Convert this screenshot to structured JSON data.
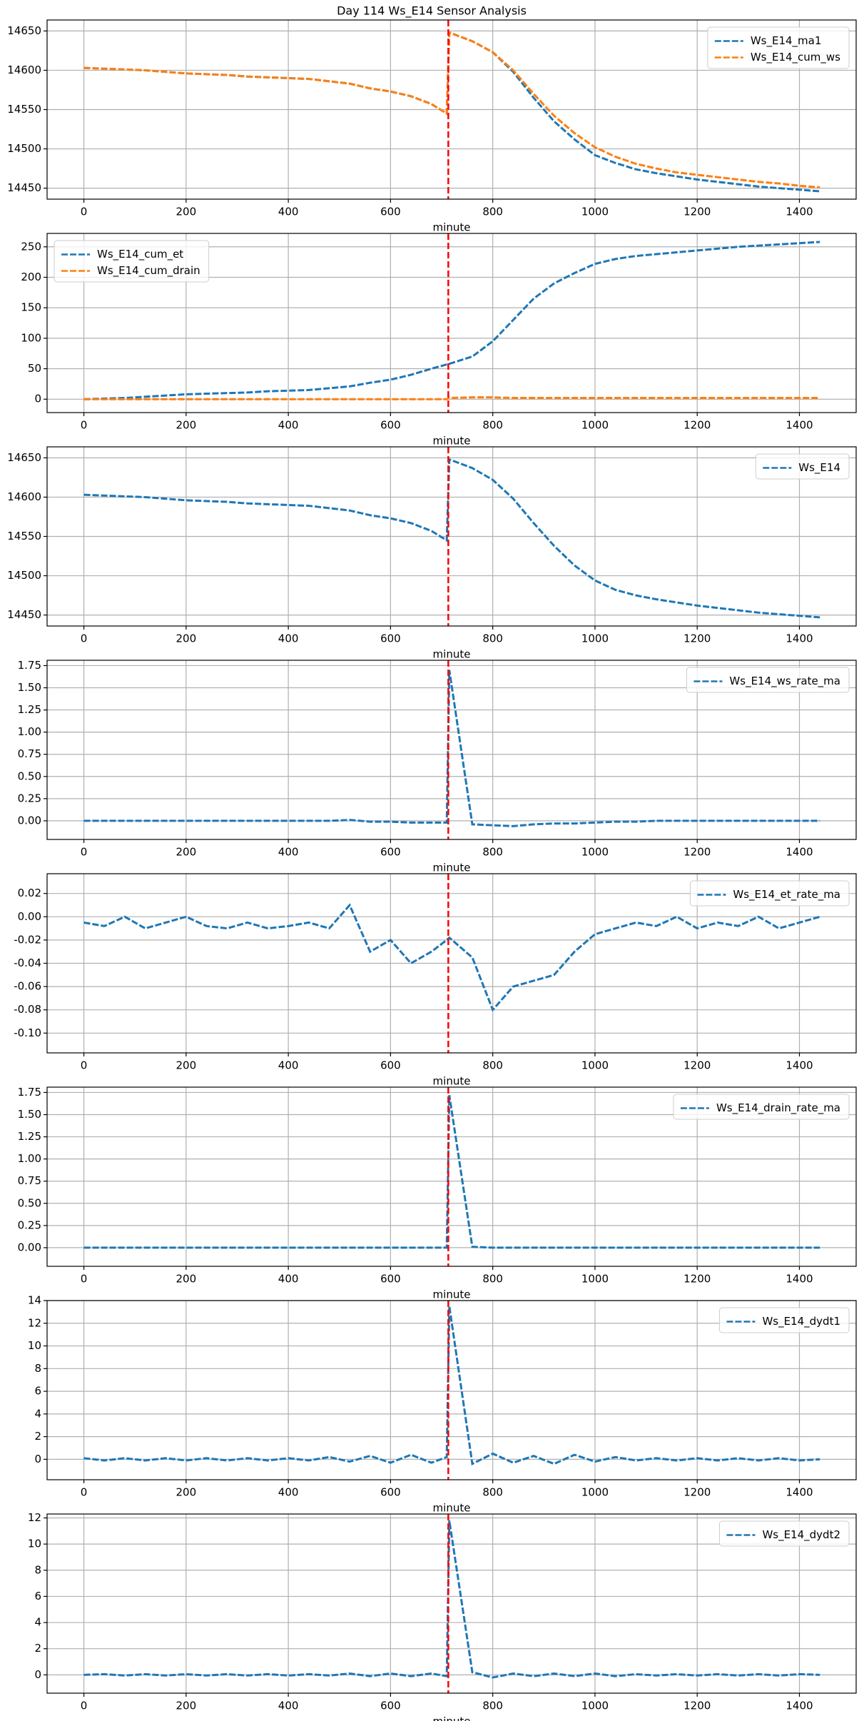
{
  "title": "Day 114 Ws_E14 Sensor Analysis",
  "chart_data": [
    {
      "type": "line",
      "xlabel": "minute",
      "legend": "upper right",
      "grid": true,
      "vline": 713,
      "vline_color": "#ff0000",
      "xlim": [
        -72,
        1511
      ],
      "xticks": [
        0,
        200,
        400,
        600,
        800,
        1000,
        1200,
        1400
      ],
      "ylim": [
        14436,
        14664
      ],
      "yticks": [
        14450,
        14500,
        14550,
        14600,
        14650
      ],
      "x": [
        0,
        40,
        80,
        120,
        160,
        200,
        240,
        280,
        320,
        360,
        400,
        440,
        480,
        520,
        560,
        600,
        640,
        680,
        710,
        715,
        760,
        800,
        840,
        880,
        920,
        960,
        1000,
        1040,
        1080,
        1120,
        1160,
        1200,
        1240,
        1280,
        1320,
        1360,
        1400,
        1440
      ],
      "series": [
        {
          "name": "Ws_E14_ma1",
          "color": "#1f77b4",
          "values": [
            14603,
            14602,
            14601,
            14600,
            14598,
            14596,
            14595,
            14594,
            14592,
            14591,
            14590,
            14589,
            14586,
            14583,
            14577,
            14573,
            14567,
            14557,
            14545,
            14648,
            14637,
            14623,
            14598,
            14565,
            14535,
            14512,
            14492,
            14482,
            14474,
            14469,
            14465,
            14461,
            14458,
            14455,
            14452,
            14450,
            14448,
            14446
          ]
        },
        {
          "name": "Ws_E14_cum_ws",
          "color": "#ff7f0e",
          "values": [
            14603,
            14602,
            14601,
            14600,
            14598,
            14596,
            14595,
            14594,
            14592,
            14591,
            14590,
            14589,
            14586,
            14583,
            14577,
            14573,
            14567,
            14557,
            14545,
            14648,
            14637,
            14623,
            14600,
            14570,
            14542,
            14520,
            14502,
            14490,
            14481,
            14475,
            14470,
            14467,
            14464,
            14461,
            14458,
            14456,
            14453,
            14451
          ]
        }
      ]
    },
    {
      "type": "line",
      "xlabel": "minute",
      "legend": "upper left",
      "grid": true,
      "vline": 713,
      "vline_color": "#ff0000",
      "xlim": [
        -72,
        1511
      ],
      "xticks": [
        0,
        200,
        400,
        600,
        800,
        1000,
        1200,
        1400
      ],
      "ylim": [
        -22,
        272
      ],
      "yticks": [
        0,
        50,
        100,
        150,
        200,
        250
      ],
      "x": [
        0,
        40,
        80,
        120,
        160,
        200,
        240,
        280,
        320,
        360,
        400,
        440,
        480,
        520,
        560,
        600,
        640,
        680,
        710,
        715,
        760,
        800,
        840,
        880,
        920,
        960,
        1000,
        1040,
        1080,
        1120,
        1160,
        1200,
        1240,
        1280,
        1320,
        1360,
        1400,
        1440
      ],
      "series": [
        {
          "name": "Ws_E14_cum_et",
          "color": "#1f77b4",
          "values": [
            0,
            1,
            2,
            4,
            6,
            8,
            9,
            10,
            11,
            13,
            14,
            15,
            18,
            21,
            27,
            32,
            40,
            50,
            57,
            58,
            70,
            95,
            130,
            165,
            190,
            207,
            222,
            230,
            235,
            238,
            241,
            244,
            247,
            250,
            252,
            254,
            256,
            258
          ]
        },
        {
          "name": "Ws_E14_cum_drain",
          "color": "#ff7f0e",
          "values": [
            0,
            0,
            0,
            0,
            0,
            0,
            0,
            0,
            0,
            0,
            0,
            0,
            0,
            0,
            0,
            0,
            0,
            0,
            0,
            2,
            3,
            3,
            2,
            2,
            2,
            2,
            2,
            2,
            2,
            2,
            2,
            2,
            2,
            2,
            2,
            2,
            2,
            2
          ]
        }
      ]
    },
    {
      "type": "line",
      "xlabel": "minute",
      "legend": "upper right",
      "grid": true,
      "vline": 713,
      "vline_color": "#ff0000",
      "xlim": [
        -72,
        1511
      ],
      "xticks": [
        0,
        200,
        400,
        600,
        800,
        1000,
        1200,
        1400
      ],
      "ylim": [
        14436,
        14664
      ],
      "yticks": [
        14450,
        14500,
        14550,
        14600,
        14650
      ],
      "x": [
        0,
        40,
        80,
        120,
        160,
        200,
        240,
        280,
        320,
        360,
        400,
        440,
        480,
        520,
        560,
        600,
        640,
        680,
        710,
        715,
        760,
        800,
        840,
        880,
        920,
        960,
        1000,
        1040,
        1080,
        1120,
        1160,
        1200,
        1240,
        1280,
        1320,
        1360,
        1400,
        1440
      ],
      "series": [
        {
          "name": "Ws_E14",
          "color": "#1f77b4",
          "values": [
            14603,
            14602,
            14601,
            14600,
            14598,
            14596,
            14595,
            14594,
            14592,
            14591,
            14590,
            14589,
            14586,
            14583,
            14577,
            14573,
            14567,
            14557,
            14545,
            14648,
            14637,
            14622,
            14598,
            14567,
            14538,
            14513,
            14494,
            14482,
            14475,
            14470,
            14466,
            14462,
            14459,
            14456,
            14453,
            14451,
            14449,
            14447
          ]
        }
      ]
    },
    {
      "type": "line",
      "xlabel": "minute",
      "legend": "upper right",
      "grid": true,
      "vline": 713,
      "vline_color": "#ff0000",
      "xlim": [
        -72,
        1511
      ],
      "xticks": [
        0,
        200,
        400,
        600,
        800,
        1000,
        1200,
        1400
      ],
      "ylim": [
        -0.21,
        1.81
      ],
      "yticks": [
        {
          "value": 0,
          "label": "0.00"
        },
        {
          "value": 0.25,
          "label": "0.25"
        },
        {
          "value": 0.5,
          "label": "0.50"
        },
        {
          "value": 0.75,
          "label": "0.75"
        },
        {
          "value": 1,
          "label": "1.00"
        },
        {
          "value": 1.25,
          "label": "1.25"
        },
        {
          "value": 1.5,
          "label": "1.50"
        },
        {
          "value": 1.75,
          "label": "1.75"
        }
      ],
      "x": [
        0,
        40,
        80,
        120,
        160,
        200,
        240,
        280,
        320,
        360,
        400,
        440,
        480,
        520,
        560,
        600,
        640,
        680,
        710,
        715,
        760,
        800,
        840,
        880,
        920,
        960,
        1000,
        1040,
        1080,
        1120,
        1160,
        1200,
        1240,
        1280,
        1320,
        1360,
        1400,
        1440
      ],
      "series": [
        {
          "name": "Ws_E14_ws_rate_ma",
          "color": "#1f77b4",
          "values": [
            0,
            0,
            0,
            0,
            0,
            0,
            0,
            0,
            0,
            0,
            0,
            0,
            0,
            0.01,
            -0.01,
            -0.01,
            -0.02,
            -0.02,
            -0.02,
            1.7,
            -0.04,
            -0.05,
            -0.06,
            -0.04,
            -0.03,
            -0.03,
            -0.02,
            -0.01,
            -0.01,
            0,
            0,
            0,
            0,
            0,
            0,
            0,
            0,
            0
          ]
        }
      ]
    },
    {
      "type": "line",
      "xlabel": "minute",
      "legend": "upper right",
      "grid": true,
      "vline": 713,
      "vline_color": "#ff0000",
      "xlim": [
        -72,
        1511
      ],
      "xticks": [
        0,
        200,
        400,
        600,
        800,
        1000,
        1200,
        1400
      ],
      "ylim": [
        -0.117,
        0.037
      ],
      "yticks": [
        {
          "value": -0.1,
          "label": "-0.10"
        },
        {
          "value": -0.08,
          "label": "-0.08"
        },
        {
          "value": -0.06,
          "label": "-0.06"
        },
        {
          "value": -0.04,
          "label": "-0.04"
        },
        {
          "value": -0.02,
          "label": "-0.02"
        },
        {
          "value": 0,
          "label": "0.00"
        },
        0.02
      ],
      "x": [
        0,
        40,
        80,
        120,
        160,
        200,
        240,
        280,
        320,
        360,
        400,
        440,
        480,
        520,
        560,
        600,
        640,
        680,
        710,
        715,
        760,
        800,
        840,
        880,
        920,
        960,
        1000,
        1040,
        1080,
        1120,
        1160,
        1200,
        1240,
        1280,
        1320,
        1360,
        1400,
        1440
      ],
      "series": [
        {
          "name": "Ws_E14_et_rate_ma",
          "color": "#1f77b4",
          "values": [
            -0.005,
            -0.008,
            0,
            -0.01,
            -0.005,
            0,
            -0.008,
            -0.01,
            -0.005,
            -0.01,
            -0.008,
            -0.005,
            -0.01,
            0.01,
            -0.03,
            -0.02,
            -0.04,
            -0.03,
            -0.02,
            -0.018,
            -0.035,
            -0.08,
            -0.06,
            -0.055,
            -0.05,
            -0.03,
            -0.015,
            -0.01,
            -0.005,
            -0.008,
            0,
            -0.01,
            -0.005,
            -0.008,
            0,
            -0.01,
            -0.005,
            0
          ]
        }
      ]
    },
    {
      "type": "line",
      "xlabel": "minute",
      "legend": "upper right",
      "grid": true,
      "vline": 713,
      "vline_color": "#ff0000",
      "xlim": [
        -72,
        1511
      ],
      "xticks": [
        0,
        200,
        400,
        600,
        800,
        1000,
        1200,
        1400
      ],
      "ylim": [
        -0.21,
        1.81
      ],
      "yticks": [
        {
          "value": 0,
          "label": "0.00"
        },
        {
          "value": 0.25,
          "label": "0.25"
        },
        {
          "value": 0.5,
          "label": "0.50"
        },
        {
          "value": 0.75,
          "label": "0.75"
        },
        {
          "value": 1,
          "label": "1.00"
        },
        {
          "value": 1.25,
          "label": "1.25"
        },
        {
          "value": 1.5,
          "label": "1.50"
        },
        {
          "value": 1.75,
          "label": "1.75"
        }
      ],
      "x": [
        0,
        40,
        80,
        120,
        160,
        200,
        240,
        280,
        320,
        360,
        400,
        440,
        480,
        520,
        560,
        600,
        640,
        680,
        710,
        715,
        760,
        800,
        840,
        880,
        920,
        960,
        1000,
        1040,
        1080,
        1120,
        1160,
        1200,
        1240,
        1280,
        1320,
        1360,
        1400,
        1440
      ],
      "series": [
        {
          "name": "Ws_E14_drain_rate_ma",
          "color": "#1f77b4",
          "values": [
            0,
            0,
            0,
            0,
            0,
            0,
            0,
            0,
            0,
            0,
            0,
            0,
            0,
            0,
            0,
            0,
            0,
            0,
            0,
            1.72,
            0.01,
            0,
            0,
            0,
            0,
            0,
            0,
            0,
            0,
            0,
            0,
            0,
            0,
            0,
            0,
            0,
            0,
            0
          ]
        }
      ]
    },
    {
      "type": "line",
      "xlabel": "minute",
      "legend": "upper right",
      "grid": true,
      "vline": 713,
      "vline_color": "#ff0000",
      "xlim": [
        -72,
        1511
      ],
      "xticks": [
        0,
        200,
        400,
        600,
        800,
        1000,
        1200,
        1400
      ],
      "ylim": [
        -1.8,
        14
      ],
      "yticks": [
        0,
        2,
        4,
        6,
        8,
        10,
        12,
        14
      ],
      "x": [
        0,
        40,
        80,
        120,
        160,
        200,
        240,
        280,
        320,
        360,
        400,
        440,
        480,
        520,
        560,
        600,
        640,
        680,
        710,
        715,
        760,
        800,
        840,
        880,
        920,
        960,
        1000,
        1040,
        1080,
        1120,
        1160,
        1200,
        1240,
        1280,
        1320,
        1360,
        1400,
        1440
      ],
      "series": [
        {
          "name": "Ws_E14_dydt1",
          "color": "#1f77b4",
          "values": [
            0.1,
            -0.1,
            0.1,
            -0.1,
            0.1,
            -0.1,
            0.1,
            -0.1,
            0.1,
            -0.1,
            0.1,
            -0.1,
            0.2,
            -0.2,
            0.3,
            -0.3,
            0.4,
            -0.3,
            0.2,
            13.5,
            -0.4,
            0.5,
            -0.3,
            0.3,
            -0.4,
            0.4,
            -0.2,
            0.2,
            -0.1,
            0.1,
            -0.1,
            0.1,
            -0.1,
            0.1,
            -0.1,
            0.1,
            -0.1,
            0
          ]
        }
      ]
    },
    {
      "type": "line",
      "xlabel": "minute",
      "legend": "upper right",
      "grid": true,
      "vline": 713,
      "vline_color": "#ff0000",
      "xlim": [
        -72,
        1511
      ],
      "xticks": [
        0,
        200,
        400,
        600,
        800,
        1000,
        1200,
        1400
      ],
      "ylim": [
        -1.4,
        12.3
      ],
      "yticks": [
        0,
        2,
        4,
        6,
        8,
        10,
        12
      ],
      "x": [
        0,
        40,
        80,
        120,
        160,
        200,
        240,
        280,
        320,
        360,
        400,
        440,
        480,
        520,
        560,
        600,
        640,
        680,
        710,
        715,
        760,
        800,
        840,
        880,
        920,
        960,
        1000,
        1040,
        1080,
        1120,
        1160,
        1200,
        1240,
        1280,
        1320,
        1360,
        1400,
        1440
      ],
      "series": [
        {
          "name": "Ws_E14_dydt2",
          "color": "#1f77b4",
          "values": [
            0,
            0.05,
            -0.05,
            0.05,
            -0.05,
            0.05,
            -0.05,
            0.05,
            -0.05,
            0.05,
            -0.05,
            0.05,
            -0.05,
            0.1,
            -0.1,
            0.1,
            -0.1,
            0.1,
            -0.1,
            11.8,
            0.2,
            -0.2,
            0.1,
            -0.1,
            0.1,
            -0.1,
            0.1,
            -0.1,
            0.05,
            -0.05,
            0.05,
            -0.05,
            0.05,
            -0.05,
            0.05,
            -0.05,
            0.05,
            0
          ]
        }
      ]
    }
  ]
}
